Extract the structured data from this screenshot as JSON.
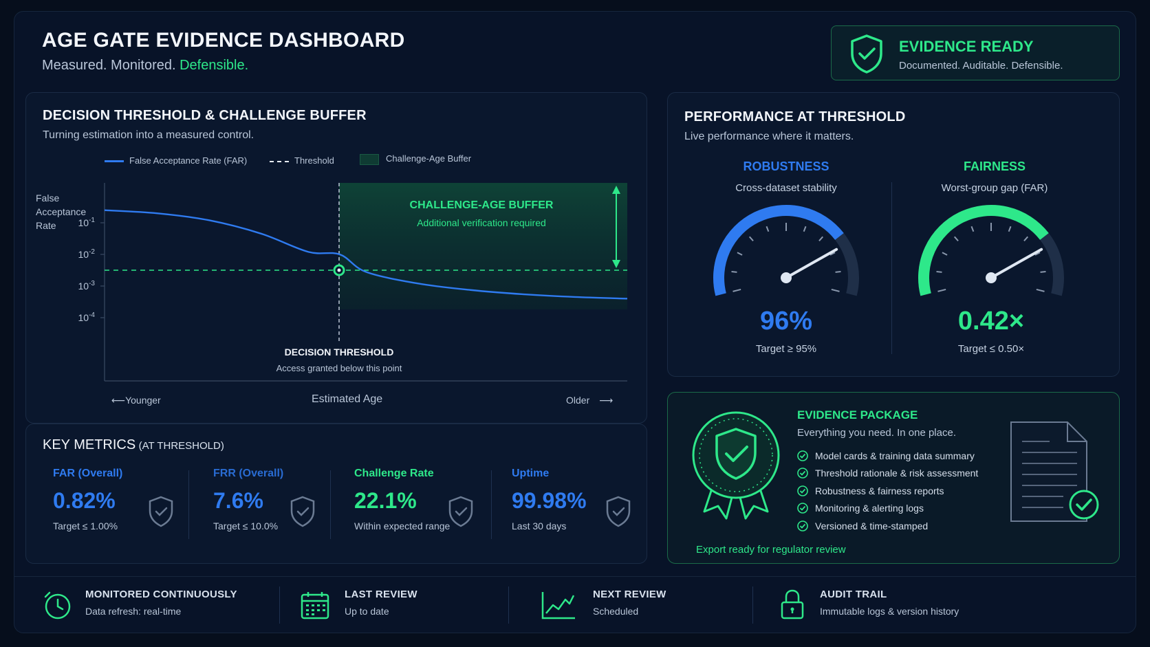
{
  "header": {
    "title": "AGE GATE EVIDENCE DASHBOARD",
    "subtitle_plain": "Measured. Monitored.",
    "subtitle_accent": "Defensible."
  },
  "badge": {
    "title": "EVIDENCE READY",
    "subtitle": "Documented. Auditable. Defensible.",
    "icon": "shield-check-icon"
  },
  "threshold_panel": {
    "title": "DECISION THRESHOLD & CHALLENGE BUFFER",
    "subtitle": "Turning estimation into a measured control.",
    "legend": [
      {
        "label": "False Acceptance Rate (FAR)",
        "style": "solid-blue"
      },
      {
        "label": "Threshold",
        "style": "dashed-white"
      },
      {
        "label": "Challenge-Age Buffer",
        "style": "green-fill"
      }
    ],
    "ylabel_line1": "False",
    "ylabel_line2": "Acceptance",
    "ylabel_line3": "Rate",
    "xlabel": "Estimated Age",
    "x_left": "Younger",
    "x_right": "Older",
    "buffer_title": "CHALLENGE-AGE BUFFER",
    "buffer_sub": "Additional verification required",
    "threshold_title": "DECISION THRESHOLD",
    "threshold_sub": "Access granted below this point"
  },
  "chart_data": {
    "type": "line",
    "yscale": "log",
    "yticks": [
      {
        "base": "10",
        "exp": "-1",
        "value": 0.1
      },
      {
        "base": "10",
        "exp": "-2",
        "value": 0.01
      },
      {
        "base": "10",
        "exp": "-3",
        "value": 0.001
      },
      {
        "base": "10",
        "exp": "-4",
        "value": 0.0001
      }
    ],
    "series": [
      {
        "name": "False Acceptance Rate (FAR)",
        "color": "#2f7bf0",
        "points": [
          [
            0,
            0.25
          ],
          [
            0.1,
            0.2
          ],
          [
            0.2,
            0.12
          ],
          [
            0.3,
            0.045
          ],
          [
            0.39,
            0.012
          ],
          [
            0.45,
            0.01
          ],
          [
            0.5,
            0.0028
          ],
          [
            0.6,
            0.0012
          ],
          [
            0.7,
            0.00075
          ],
          [
            0.8,
            0.00055
          ],
          [
            0.9,
            0.00045
          ],
          [
            1.0,
            0.0004
          ]
        ]
      }
    ],
    "threshold_x": 0.45,
    "threshold_y": 0.01
  },
  "key_metrics": {
    "title": "KEY METRICS",
    "title_suffix": "(AT THRESHOLD)",
    "items": [
      {
        "label": "FAR (Overall)",
        "value": "0.82%",
        "target": "Target ≤ 1.00%",
        "color": "#2f7bf0"
      },
      {
        "label": "FRR (Overall)",
        "value": "7.6%",
        "target": "Target ≤ 10.0%",
        "color": "#2f7bf0"
      },
      {
        "label": "Challenge Rate",
        "value": "22.1%",
        "target": "Within expected range",
        "color": "#2ee88a"
      },
      {
        "label": "Uptime",
        "value": "99.98%",
        "target": "Last 30 days",
        "color": "#2f7bf0"
      }
    ]
  },
  "performance": {
    "title": "PERFORMANCE AT THRESHOLD",
    "subtitle": "Live performance where it matters.",
    "robustness": {
      "head": "ROBUSTNESS",
      "sub": "Cross-dataset stability",
      "value": "96%",
      "target": "Target ≥ 95%",
      "color": "#2f7bf0",
      "fill_fraction": 0.75
    },
    "fairness": {
      "head": "FAIRNESS",
      "sub": "Worst-group gap (FAR)",
      "value": "0.42×",
      "target": "Target ≤ 0.50×",
      "color": "#2ee88a",
      "fill_fraction": 0.75
    }
  },
  "evidence_package": {
    "title": "EVIDENCE PACKAGE",
    "subtitle": "Everything you need. In one place.",
    "items": [
      "Model cards & training data summary",
      "Threshold rationale & risk assessment",
      "Robustness & fairness reports",
      "Monitoring & alerting logs",
      "Versioned & time-stamped"
    ],
    "export": "Export ready for regulator review"
  },
  "footer": [
    {
      "title": "MONITORED CONTINUOUSLY",
      "sub": "Data refresh: real-time",
      "icon": "clock-icon"
    },
    {
      "title": "LAST REVIEW",
      "sub": "Up to date",
      "icon": "calendar-icon"
    },
    {
      "title": "NEXT REVIEW",
      "sub": "Scheduled",
      "icon": "trend-chart-icon"
    },
    {
      "title": "AUDIT TRAIL",
      "sub": "Immutable logs & version history",
      "icon": "lock-icon"
    }
  ]
}
